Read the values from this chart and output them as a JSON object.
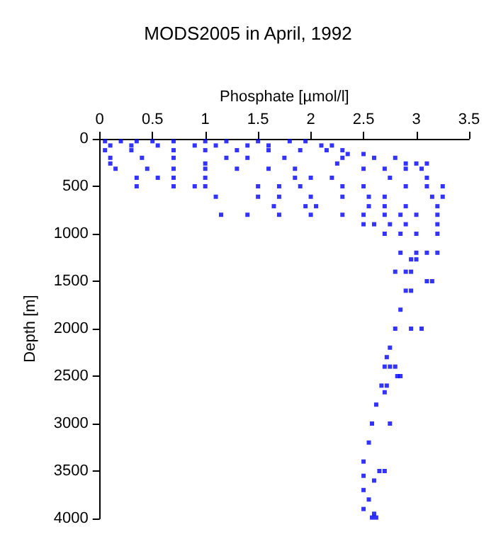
{
  "chart_data": {
    "type": "scatter",
    "title": "MODS2005 in April, 1992",
    "xlabel": "Phosphate [µmol/l]",
    "ylabel": "Depth [m]",
    "xlim": [
      0,
      3.5
    ],
    "xticks": [
      0,
      0.5,
      1,
      1.5,
      2,
      2.5,
      3,
      3.5
    ],
    "ylim": [
      4000,
      0
    ],
    "yticks": [
      0,
      500,
      1000,
      1500,
      2000,
      2500,
      3000,
      3500,
      4000
    ],
    "marker": "square",
    "series": [
      {
        "color": "#0000ff",
        "x": [
          0.05,
          0.2,
          0.35,
          0.5,
          0.7,
          1.0,
          1.2,
          1.5,
          1.8,
          1.95,
          0.1,
          0.3,
          0.55,
          0.9,
          1.1,
          1.4,
          1.6,
          2.1,
          2.2,
          0.05,
          0.3,
          0.7,
          1.0,
          1.3,
          1.6,
          1.9,
          2.15,
          2.3,
          2.35,
          2.5,
          0.1,
          0.4,
          0.7,
          1.2,
          1.4,
          1.75,
          2.3,
          2.6,
          2.8,
          0.1,
          1.0,
          2.25,
          2.9,
          3.0,
          3.1,
          0.15,
          0.45,
          0.7,
          1.0,
          1.3,
          1.6,
          1.85,
          2.5,
          2.7,
          2.9,
          3.05,
          0.35,
          0.55,
          0.7,
          1.0,
          1.85,
          2.0,
          2.2,
          2.75,
          3.1,
          0.35,
          0.7,
          0.9,
          1.0,
          1.5,
          1.7,
          1.9,
          2.3,
          2.5,
          2.9,
          3.1,
          3.25,
          1.1,
          1.5,
          1.7,
          2.0,
          2.3,
          2.55,
          2.7,
          3.15,
          3.25,
          1.65,
          1.95,
          2.05,
          2.55,
          2.7,
          2.9,
          3.2,
          1.15,
          1.4,
          1.7,
          2.0,
          2.3,
          2.5,
          2.7,
          2.85,
          3.0,
          3.2,
          2.5,
          2.6,
          2.75,
          2.9,
          3.2,
          2.7,
          2.85,
          3.0,
          3.2,
          2.85,
          3.0,
          3.1,
          3.2,
          2.95,
          3.0,
          2.8,
          2.9,
          2.95,
          3.1,
          3.15,
          2.9,
          2.95,
          2.85,
          2.8,
          2.95,
          3.05,
          2.75,
          2.72,
          2.7,
          2.75,
          2.8,
          2.82,
          2.85,
          2.67,
          2.72,
          2.7,
          2.62,
          2.58,
          2.75,
          2.55,
          2.5,
          2.65,
          2.7,
          2.5,
          2.6,
          2.5,
          2.55,
          2.5,
          2.6,
          2.58,
          2.62
        ],
        "values": [
          25,
          25,
          25,
          25,
          25,
          25,
          25,
          25,
          25,
          25,
          70,
          70,
          70,
          70,
          70,
          70,
          70,
          70,
          70,
          120,
          120,
          120,
          120,
          120,
          120,
          120,
          120,
          120,
          160,
          160,
          200,
          200,
          200,
          200,
          200,
          200,
          200,
          200,
          200,
          260,
          260,
          260,
          260,
          260,
          260,
          315,
          315,
          315,
          315,
          315,
          315,
          315,
          315,
          315,
          315,
          315,
          410,
          410,
          410,
          410,
          410,
          410,
          410,
          410,
          410,
          500,
          500,
          500,
          500,
          500,
          500,
          500,
          500,
          500,
          500,
          500,
          500,
          610,
          610,
          610,
          610,
          610,
          610,
          610,
          610,
          610,
          710,
          710,
          710,
          710,
          710,
          710,
          710,
          800,
          800,
          800,
          800,
          800,
          800,
          800,
          800,
          800,
          800,
          900,
          900,
          900,
          900,
          900,
          1000,
          1000,
          1000,
          1000,
          1200,
          1200,
          1200,
          1200,
          1270,
          1270,
          1400,
          1400,
          1400,
          1500,
          1500,
          1600,
          1600,
          1800,
          2000,
          2000,
          2000,
          2200,
          2300,
          2400,
          2400,
          2400,
          2500,
          2500,
          2600,
          2600,
          2670,
          2800,
          3000,
          3000,
          3200,
          3400,
          3500,
          3500,
          3550,
          3600,
          3700,
          3800,
          3900,
          3950,
          3990,
          3990
        ]
      }
    ]
  }
}
